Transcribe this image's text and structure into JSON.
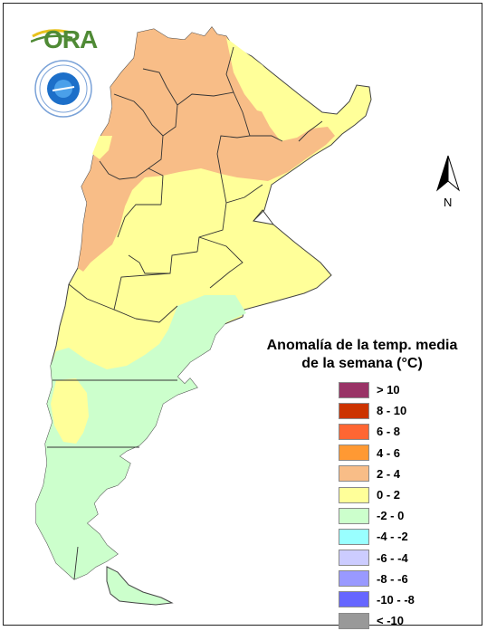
{
  "logo": {
    "text": "ORA"
  },
  "north_arrow": {
    "label": "N"
  },
  "legend": {
    "title_line1": "Anomalía de la temp. media",
    "title_line2": "de la semana (°C)",
    "items": [
      {
        "label": "> 10",
        "color": "#993366"
      },
      {
        "label": "8 - 10",
        "color": "#cc3300"
      },
      {
        "label": "6 - 8",
        "color": "#ff6633"
      },
      {
        "label": "4 - 6",
        "color": "#ff9933"
      },
      {
        "label": "2 - 4",
        "color": "#f8bd87"
      },
      {
        "label": "0 - 2",
        "color": "#ffff99"
      },
      {
        "label": "-2 - 0",
        "color": "#ccffcc"
      },
      {
        "label": "-4 - -2",
        "color": "#99ffff"
      },
      {
        "label": "-6 - -4",
        "color": "#ccccff"
      },
      {
        "label": "-8 - -6",
        "color": "#9999ff"
      },
      {
        "label": "-10 - -8",
        "color": "#6666ff"
      },
      {
        "label": "< -10",
        "color": "#999999"
      }
    ]
  },
  "map": {
    "region": "Argentina",
    "zones": [
      {
        "name": "north-west",
        "range": "2 - 4",
        "color": "#f8bd87"
      },
      {
        "name": "north",
        "range": "0 - 2",
        "color": "#ffff99"
      },
      {
        "name": "centre",
        "range": "0 - 2",
        "color": "#ffff99"
      },
      {
        "name": "patagonia",
        "range": "-2 - 0",
        "color": "#ccffcc"
      }
    ]
  }
}
